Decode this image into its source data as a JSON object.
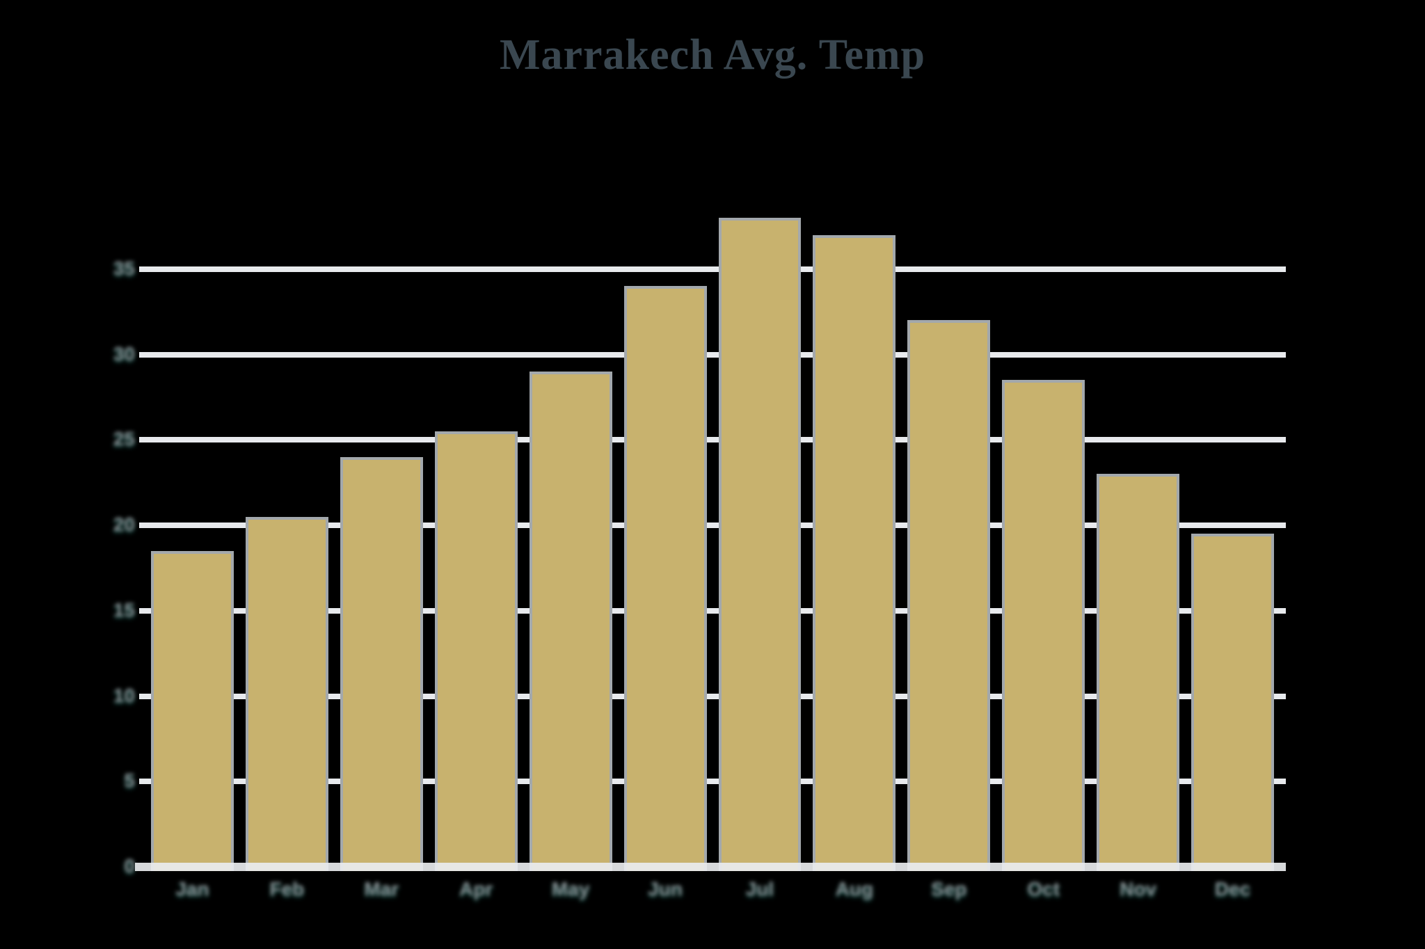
{
  "title": "Marrakech Avg. Temp",
  "chart_data": {
    "type": "bar",
    "title": "Marrakech Avg. Temp",
    "categories": [
      "Jan",
      "Feb",
      "Mar",
      "Apr",
      "May",
      "Jun",
      "Jul",
      "Aug",
      "Sep",
      "Oct",
      "Nov",
      "Dec"
    ],
    "values": [
      18.5,
      20.5,
      24,
      25.5,
      29,
      34,
      38,
      37,
      32,
      28.5,
      23,
      19.5
    ],
    "xlabel": "",
    "ylabel": "",
    "ylim": [
      0,
      40
    ],
    "yticks": [
      0,
      5,
      10,
      15,
      20,
      25,
      30,
      35
    ],
    "grid": true,
    "legend": false,
    "colors": {
      "background": "#000000",
      "bar_fill": "#C8B26E",
      "bar_border": "#A3A8AC",
      "gridline": "#E8EAED",
      "title_text": "#3A4750",
      "axis_label_text": "#888C90"
    }
  }
}
